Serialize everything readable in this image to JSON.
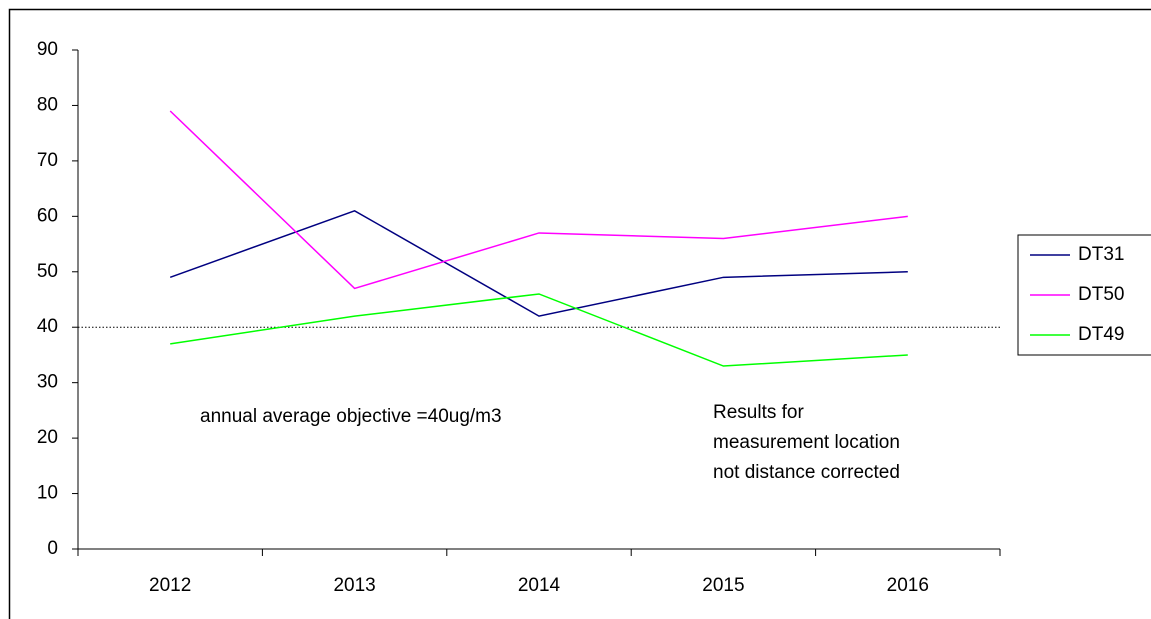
{
  "chart_data": {
    "type": "line",
    "categories": [
      "2012",
      "2013",
      "2014",
      "2015",
      "2016"
    ],
    "series": [
      {
        "name": "DT31",
        "color": "#000080",
        "values": [
          49,
          61,
          42,
          49,
          50
        ]
      },
      {
        "name": "DT50",
        "color": "#ff00ff",
        "values": [
          79,
          47,
          57,
          56,
          60
        ]
      },
      {
        "name": "DT49",
        "color": "#00ff00",
        "values": [
          37,
          42,
          46,
          33,
          35
        ]
      }
    ],
    "ylim": [
      0,
      90
    ],
    "yticks": [
      0,
      10,
      20,
      30,
      40,
      50,
      60,
      70,
      80,
      90
    ],
    "reference_line": 40,
    "annotations": [
      "annual average objective =40ug/m3",
      "Results for",
      "measurement location",
      "not distance corrected"
    ],
    "legend": "right",
    "grid": false
  }
}
